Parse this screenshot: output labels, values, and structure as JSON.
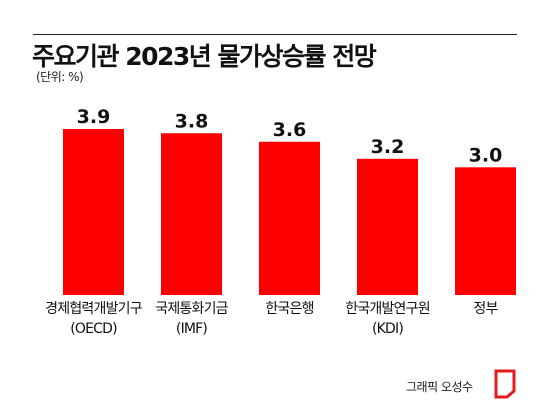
{
  "header": {
    "title": "주요기관 2023년 물가상승률 전망",
    "unit": "(단위: %)"
  },
  "footer": {
    "credit": "그래픽 오성수"
  },
  "colors": {
    "bar": "#ff0000",
    "logo": "#e31b1b"
  },
  "chart_data": {
    "type": "bar",
    "title": "주요기관 2023년 물가상승률 전망",
    "xlabel": "",
    "ylabel": "",
    "categories": [
      [
        "경제협력개발기구",
        "(OECD)"
      ],
      [
        "국제통화기금",
        "(IMF)"
      ],
      [
        "한국은행"
      ],
      [
        "한국개발연구원",
        "(KDI)"
      ],
      [
        "정부"
      ]
    ],
    "values": [
      3.9,
      3.8,
      3.6,
      3.2,
      3.0
    ],
    "value_labels": [
      "3.9",
      "3.8",
      "3.6",
      "3.2",
      "3.0"
    ],
    "ylim": [
      0,
      3.9
    ],
    "grid": false,
    "legend": "none"
  }
}
